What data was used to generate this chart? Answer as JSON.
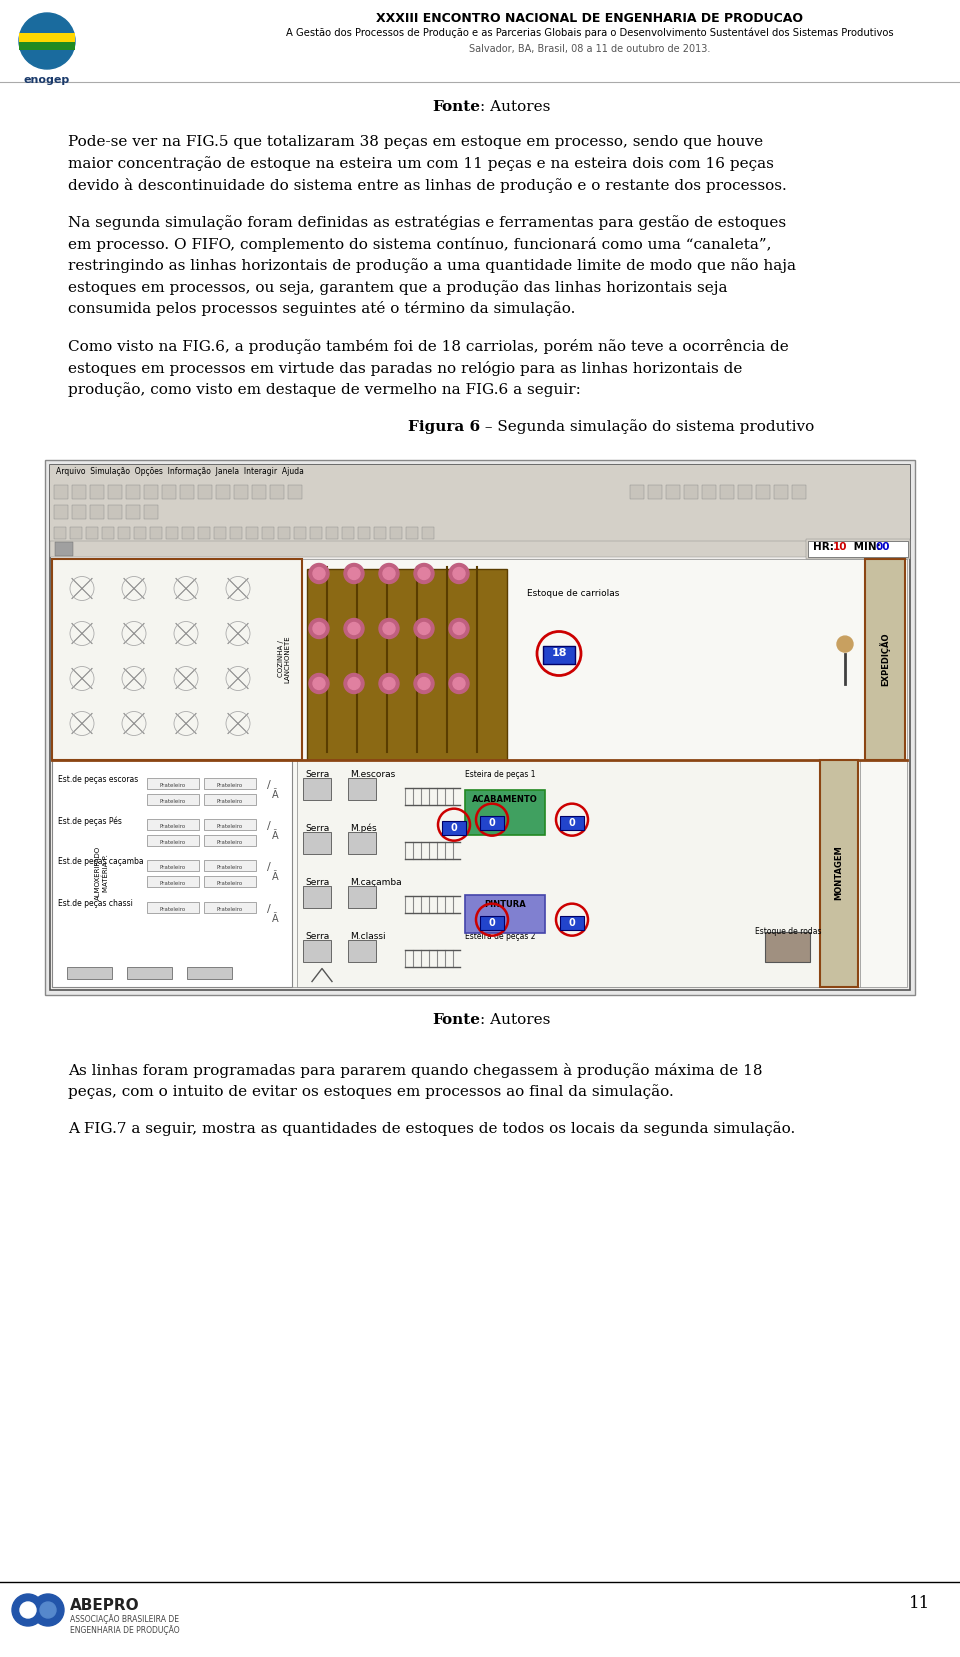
{
  "bg_color": "#ffffff",
  "title_text": "XXXIII ENCONTRO NACIONAL DE ENGENHARIA DE PRODUCAO",
  "subtitle_text": "A Gestão dos Processos de Produção e as Parcerias Globais para o Desenvolvimento Sustentável dos Sistemas Produtivos",
  "location_text": "Salvador, BA, Brasil, 08 a 11 de outubro de 2013.",
  "fonte_label": "Fonte",
  "fonte_value": ": Autores",
  "para1": "Pode-se ver na FIG.5 que totalizaram 38 peças em estoque em processo, sendo que houve\nmaior concentração de estoque na esteira um com 11 peças e na esteira dois com 16 peças\ndevido à descontinuidade do sistema entre as linhas de produção e o restante dos processos.",
  "para2": "Na segunda simulação foram definidas as estratégias e ferramentas para gestão de estoques\nem processo. O FIFO, complemento do sistema contínuo, funcionará como uma “canaleta”,\nrestringindo as linhas horizontais de produção a uma quantidade limite de modo que não haja\nestoques em processos, ou seja, garantem que a produção das linhas horizontais seja\nconsumida pelos processos seguintes até o término da simulação.",
  "para3": "Como visto na FIG.6, a produção também foi de 18 carriolas, porém não teve a ocorrência de\nestoques em processos em virtude das paradas no relógio para as linhas horizontais de\nprodução, como visto em destaque de vermelho na FIG.6 a seguir:",
  "fig_caption_bold": "Figura 6",
  "fig_caption_rest": " – Segunda simulação do sistema produtivo",
  "fonte2_label": "Fonte",
  "fonte2_value": ": Autores",
  "para4": "As linhas foram programadas para pararem quando chegassem à produção máxima de 18\npeças, com o intuito de evitar os estoques em processos ao final da simulação.",
  "para5": "A FIG.7 a seguir, mostra as quantidades de estoques de todos os locais da segunda simulação.",
  "page_number": "11",
  "text_color": "#000000",
  "header_title_color": "#000000"
}
